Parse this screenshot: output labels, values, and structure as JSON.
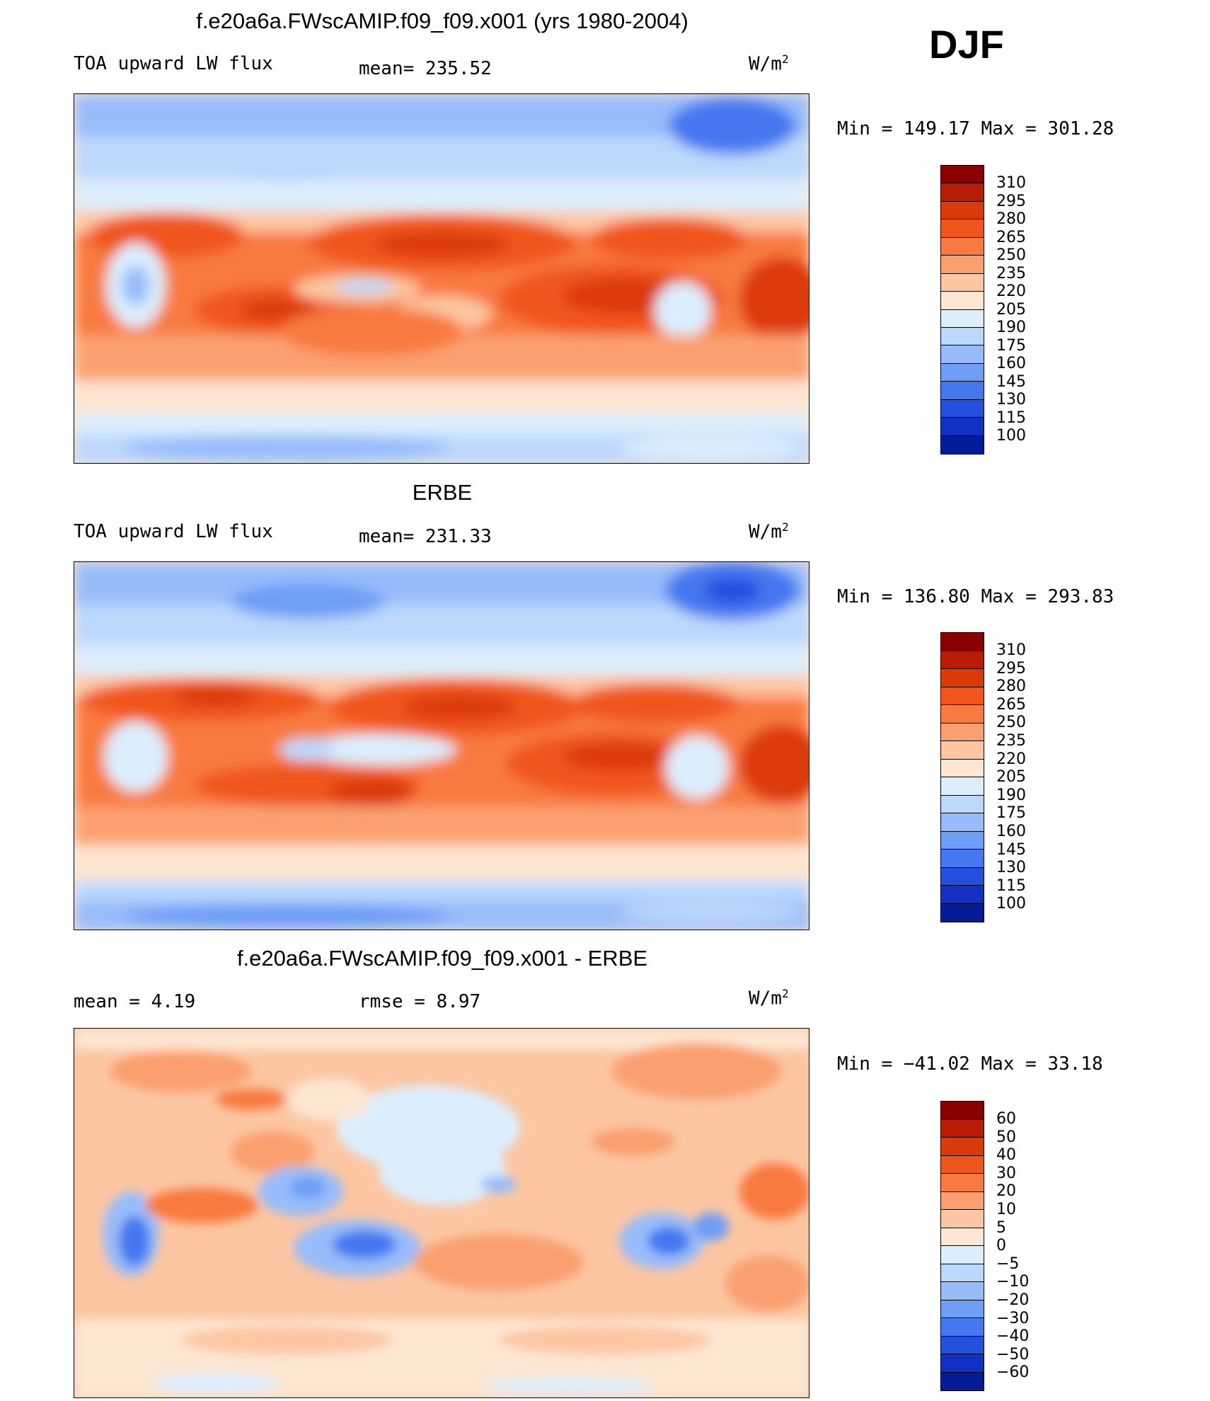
{
  "season": "DJF",
  "panels": [
    {
      "title": "f.e20a6a.FWscAMIP.f09_f09.x001 (yrs 1980-2004)",
      "left_label": "TOA upward LW flux",
      "mid_label": "mean= 235.52",
      "units_base": "W/m",
      "units_exp": "2",
      "minmax": "Min  =  149.17  Max  =  301.28"
    },
    {
      "title": "ERBE",
      "left_label": "TOA upward LW flux",
      "mid_label": "mean= 231.33",
      "units_base": "W/m",
      "units_exp": "2",
      "minmax": "Min  =  136.80  Max  =  293.83"
    },
    {
      "title": "f.e20a6a.FWscAMIP.f09_f09.x001 - ERBE",
      "left_label": "mean  =     4.19",
      "mid_label": "rmse  =     8.97",
      "units_base": "W/m",
      "units_exp": "2",
      "minmax": "Min  =  −41.02  Max  =    33.18"
    }
  ],
  "colorbar_abs": {
    "labels": [
      "310",
      "295",
      "280",
      "265",
      "250",
      "235",
      "220",
      "205",
      "190",
      "175",
      "160",
      "145",
      "130",
      "115",
      "100"
    ],
    "colors": [
      "#8b0000",
      "#b81c04",
      "#dc3a0a",
      "#f0561c",
      "#f87a40",
      "#faa070",
      "#fcc6a2",
      "#fde6d2",
      "#dceefc",
      "#bcd8fc",
      "#98bcfa",
      "#6e9ef6",
      "#4478f0",
      "#2450e0",
      "#1230c4",
      "#041c98"
    ]
  },
  "colorbar_diff": {
    "labels": [
      "60",
      "50",
      "40",
      "30",
      "20",
      "10",
      "5",
      "0",
      "−5",
      "−10",
      "−20",
      "−30",
      "−40",
      "−50",
      "−60"
    ],
    "colors": [
      "#8b0000",
      "#b81c04",
      "#dc3a0a",
      "#f0561c",
      "#f87a40",
      "#faa070",
      "#fcc6a2",
      "#fde6d2",
      "#dceefc",
      "#bcd8fc",
      "#98bcfa",
      "#6e9ef6",
      "#4478f0",
      "#2450e0",
      "#1230c4",
      "#041c98"
    ]
  }
}
